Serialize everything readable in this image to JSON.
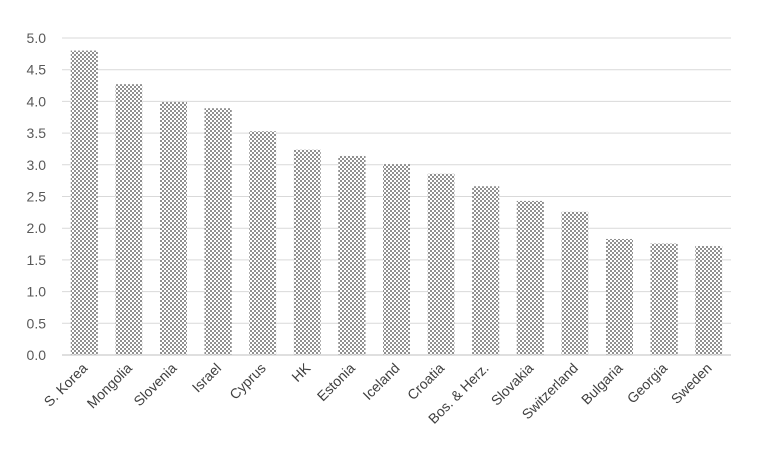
{
  "chart_data": {
    "type": "bar",
    "title": "",
    "xlabel": "",
    "ylabel": "",
    "categories": [
      "S. Korea",
      "Mongolia",
      "Slovenia",
      "Israel",
      "Cyprus",
      "HK",
      "Estonia",
      "Iceland",
      "Croatia",
      "Bos. & Herz.",
      "Slovakia",
      "Switzerland",
      "Bulgaria",
      "Georgia",
      "Sweden"
    ],
    "values": [
      4.8,
      4.27,
      3.99,
      3.89,
      3.53,
      3.24,
      3.14,
      3.01,
      2.86,
      2.66,
      2.43,
      2.26,
      1.83,
      1.76,
      1.72
    ],
    "ylim": [
      0,
      5
    ],
    "yticks": [
      "0.0",
      "0.5",
      "1.0",
      "1.5",
      "2.0",
      "2.5",
      "3.0",
      "3.5",
      "4.0",
      "4.5",
      "5.0"
    ],
    "grid": true,
    "legend": "none",
    "colors": {
      "bar_fill": "#ffffff",
      "bar_pattern": "#404040",
      "grid": "#d9d9d9",
      "axis": "#bfbfbf"
    }
  }
}
